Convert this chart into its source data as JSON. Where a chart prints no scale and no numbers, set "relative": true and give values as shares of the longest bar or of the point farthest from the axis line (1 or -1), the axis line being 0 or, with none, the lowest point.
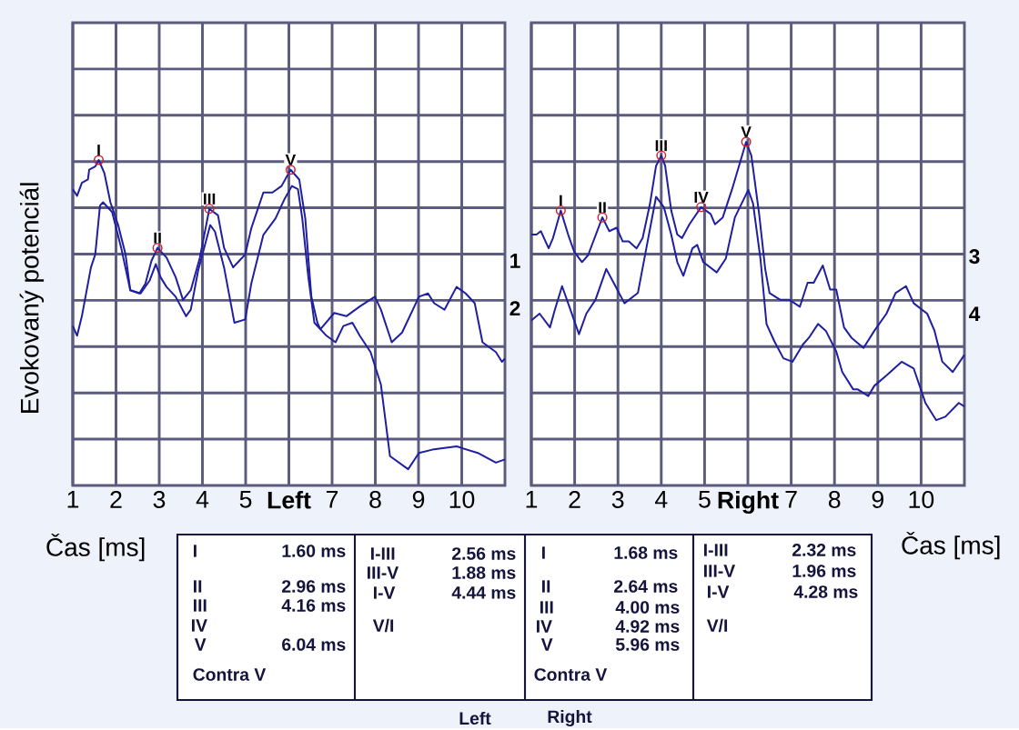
{
  "chart_data": [
    {
      "type": "line",
      "relative": true,
      "xlabel": "Čas [ms]",
      "ylabel": "Evokovaný potenciál",
      "xlim": [
        1,
        11
      ],
      "xticks": [
        1,
        2,
        3,
        4,
        5,
        {
          "value": 6,
          "label": "Left"
        },
        7,
        8,
        9,
        10
      ],
      "grid": true,
      "series": [
        {
          "name": "1",
          "color": "#1f1fa0",
          "x": [
            1.0,
            1.1,
            1.21,
            1.35,
            1.38,
            1.52,
            1.6,
            1.73,
            1.87,
            2.05,
            2.22,
            2.33,
            2.54,
            2.68,
            2.82,
            2.96,
            3.17,
            3.38,
            3.55,
            3.73,
            3.94,
            4.16,
            4.36,
            4.5,
            4.71,
            4.85,
            4.99,
            5.13,
            5.41,
            5.62,
            5.83,
            6.04,
            6.24,
            6.38,
            6.52,
            6.66,
            6.73,
            7.05,
            7.33,
            7.64,
            7.99,
            8.13,
            8.38,
            8.62,
            9.01,
            9.22,
            9.36,
            9.6,
            9.88,
            10.09,
            10.3,
            10.48,
            10.79,
            10.93,
            11.0
          ],
          "values": [
            0.91,
            0.89,
            0.93,
            0.94,
            0.97,
            0.98,
            1.0,
            0.96,
            0.87,
            0.8,
            0.71,
            0.6,
            0.59,
            0.62,
            0.69,
            0.73,
            0.7,
            0.64,
            0.57,
            0.6,
            0.7,
            0.85,
            0.83,
            0.73,
            0.67,
            0.69,
            0.71,
            0.79,
            0.9,
            0.9,
            0.92,
            0.97,
            0.94,
            0.82,
            0.58,
            0.5,
            0.48,
            0.53,
            0.52,
            0.55,
            0.58,
            0.54,
            0.44,
            0.47,
            0.58,
            0.59,
            0.56,
            0.54,
            0.61,
            0.59,
            0.56,
            0.44,
            0.41,
            0.38,
            0.39
          ]
        },
        {
          "name": "2",
          "color": "#1f1fa0",
          "x": [
            1.0,
            1.1,
            1.21,
            1.42,
            1.52,
            1.63,
            1.7,
            1.91,
            2.12,
            2.33,
            2.57,
            2.78,
            2.92,
            3.03,
            3.17,
            3.38,
            3.62,
            3.73,
            3.9,
            4.18,
            4.29,
            4.5,
            4.74,
            4.99,
            5.13,
            5.41,
            5.69,
            5.9,
            6.07,
            6.21,
            6.31,
            6.45,
            6.59,
            6.87,
            7.08,
            7.26,
            7.47,
            7.64,
            7.89,
            8.13,
            8.34,
            8.76,
            9.01,
            9.32,
            9.88,
            10.37,
            10.79,
            11.0
          ],
          "values": [
            0.49,
            0.46,
            0.52,
            0.67,
            0.71,
            0.86,
            0.87,
            0.84,
            0.73,
            0.6,
            0.59,
            0.63,
            0.68,
            0.64,
            0.61,
            0.58,
            0.52,
            0.54,
            0.66,
            0.8,
            0.78,
            0.67,
            0.5,
            0.51,
            0.62,
            0.77,
            0.82,
            0.88,
            0.92,
            0.91,
            0.82,
            0.64,
            0.5,
            0.46,
            0.44,
            0.49,
            0.5,
            0.46,
            0.41,
            0.31,
            0.09,
            0.05,
            0.1,
            0.11,
            0.12,
            0.1,
            0.07,
            0.08
          ]
        },
        {
          "type": "scatter",
          "marker": "circle",
          "color": "#cc2233",
          "x": [
            1.6,
            2.96,
            4.16,
            6.04
          ],
          "values": [
            1.0,
            0.73,
            0.85,
            0.97
          ]
        }
      ],
      "annotations": [
        {
          "text": "I",
          "x": 1.6,
          "y": 1.0
        },
        {
          "text": "II",
          "x": 2.96,
          "y": 0.73
        },
        {
          "text": "III",
          "x": 4.16,
          "y": 0.85
        },
        {
          "text": "V",
          "x": 6.04,
          "y": 0.97
        },
        "I",
        "1.60 ms",
        "II",
        "2.96 ms",
        "III",
        "4.16 ms",
        "IV",
        "V",
        "6.04 ms",
        "Contra V",
        "I-III",
        "2.56 ms",
        "III-V",
        "1.88 ms",
        "I-V",
        "4.44 ms",
        "V/I",
        "Left"
      ]
    },
    {
      "type": "line",
      "relative": true,
      "xlabel": "Čas [ms]",
      "xlim": [
        1,
        11
      ],
      "xticks": [
        1,
        2,
        3,
        4,
        5,
        {
          "value": 6,
          "label": "Right"
        },
        7,
        8,
        9,
        10
      ],
      "grid": true,
      "series": [
        {
          "name": "3",
          "color": "#1f1fa0",
          "x": [
            1.0,
            1.12,
            1.22,
            1.4,
            1.5,
            1.68,
            1.85,
            1.99,
            2.17,
            2.31,
            2.64,
            2.8,
            2.97,
            3.11,
            3.25,
            3.43,
            3.57,
            3.74,
            3.88,
            4.0,
            4.09,
            4.23,
            4.37,
            4.48,
            4.65,
            4.92,
            5.14,
            5.24,
            5.42,
            5.63,
            5.96,
            6.08,
            6.26,
            6.4,
            6.5,
            6.75,
            6.96,
            7.2,
            7.38,
            7.52,
            7.73,
            7.9,
            8.04,
            8.22,
            8.39,
            8.67,
            8.92,
            9.2,
            9.41,
            9.65,
            9.83,
            10.14,
            10.31,
            10.49,
            10.73,
            11.0
          ],
          "values": [
            0.73,
            0.73,
            0.74,
            0.69,
            0.72,
            0.8,
            0.73,
            0.68,
            0.65,
            0.67,
            0.78,
            0.74,
            0.75,
            0.71,
            0.71,
            0.69,
            0.72,
            0.82,
            0.93,
            0.96,
            0.93,
            0.8,
            0.73,
            0.72,
            0.76,
            0.81,
            0.79,
            0.76,
            0.78,
            0.86,
            1.0,
            0.96,
            0.79,
            0.63,
            0.56,
            0.54,
            0.54,
            0.52,
            0.59,
            0.59,
            0.64,
            0.57,
            0.57,
            0.46,
            0.43,
            0.4,
            0.45,
            0.5,
            0.56,
            0.58,
            0.53,
            0.5,
            0.45,
            0.36,
            0.33,
            0.38
          ]
        },
        {
          "name": "4",
          "color": "#1f1fa0",
          "x": [
            1.0,
            1.19,
            1.43,
            1.54,
            1.71,
            1.85,
            2.1,
            2.27,
            2.48,
            2.73,
            2.9,
            3.15,
            3.46,
            3.67,
            3.88,
            4.06,
            4.23,
            4.37,
            4.51,
            4.72,
            4.83,
            4.97,
            5.28,
            5.49,
            5.7,
            6.01,
            6.12,
            6.29,
            6.43,
            6.61,
            6.82,
            7.03,
            7.27,
            7.41,
            7.62,
            7.8,
            8.04,
            8.18,
            8.43,
            8.53,
            8.78,
            8.92,
            9.2,
            9.55,
            9.83,
            10.1,
            10.35,
            10.56,
            10.87,
            11.0
          ],
          "values": [
            0.48,
            0.5,
            0.46,
            0.51,
            0.58,
            0.53,
            0.44,
            0.5,
            0.54,
            0.63,
            0.59,
            0.53,
            0.56,
            0.7,
            0.84,
            0.81,
            0.73,
            0.65,
            0.61,
            0.69,
            0.7,
            0.65,
            0.62,
            0.66,
            0.78,
            0.86,
            0.82,
            0.66,
            0.47,
            0.42,
            0.37,
            0.36,
            0.41,
            0.43,
            0.47,
            0.45,
            0.39,
            0.33,
            0.28,
            0.28,
            0.26,
            0.29,
            0.32,
            0.36,
            0.34,
            0.24,
            0.19,
            0.2,
            0.24,
            0.23
          ]
        },
        {
          "type": "scatter",
          "marker": "circle",
          "color": "#cc2233",
          "x": [
            1.68,
            2.64,
            4.0,
            4.92,
            5.96
          ],
          "values": [
            0.8,
            0.78,
            0.96,
            0.81,
            1.0
          ]
        }
      ],
      "annotations": [
        {
          "text": "I",
          "x": 1.68,
          "y": 0.8
        },
        {
          "text": "II",
          "x": 2.64,
          "y": 0.78
        },
        {
          "text": "III",
          "x": 4.0,
          "y": 0.96
        },
        {
          "text": "IV",
          "x": 4.92,
          "y": 0.81
        },
        {
          "text": "V",
          "x": 5.96,
          "y": 1.0
        },
        "I",
        "1.68 ms",
        "II",
        "2.64 ms",
        "III",
        "4.00 ms",
        "IV",
        "4.92 ms",
        "V",
        "5.96 ms",
        "Contra V",
        "I-III",
        "2.32 ms",
        "III-V",
        "1.96 ms",
        "I-V",
        "4.28 ms",
        "V/I",
        "Right"
      ]
    }
  ]
}
